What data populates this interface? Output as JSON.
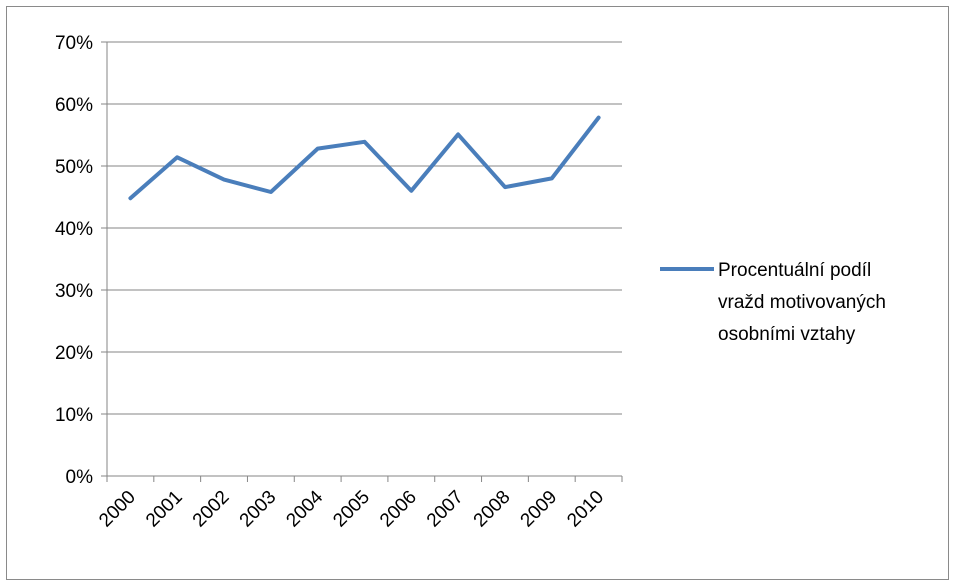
{
  "chart_data": {
    "type": "line",
    "title": "",
    "xlabel": "",
    "ylabel": "",
    "categories": [
      "2000",
      "2001",
      "2002",
      "2003",
      "2004",
      "2005",
      "2006",
      "2007",
      "2008",
      "2009",
      "2010"
    ],
    "series": [
      {
        "name": "Procentuální podíl vražd motivovaných osobními vztahy",
        "values": [
          44.8,
          51.4,
          47.8,
          45.8,
          52.8,
          53.9,
          46.0,
          55.1,
          46.6,
          48.0,
          57.8
        ],
        "color": "#4a7ebb"
      }
    ],
    "ylim": [
      0,
      70
    ],
    "yticks": [
      0,
      10,
      20,
      30,
      40,
      50,
      60,
      70
    ],
    "ytick_labels": [
      "0%",
      "10%",
      "20%",
      "30%",
      "40%",
      "50%",
      "60%",
      "70%"
    ],
    "grid": true,
    "legend_position": "right",
    "legend_lines": [
      "Procentuální podíl",
      "vražd motivovaných",
      "osobními vztahy"
    ]
  }
}
